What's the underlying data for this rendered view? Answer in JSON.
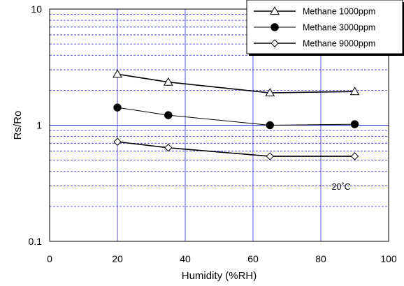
{
  "chart_data": {
    "type": "line",
    "xlabel": "Humidity (%RH)",
    "ylabel": "Rs/Ro",
    "xlim": [
      0,
      100
    ],
    "ylim": [
      0.1,
      10
    ],
    "yscale": "log",
    "xticks": [
      0,
      20,
      40,
      60,
      80,
      100
    ],
    "yticks": [
      0.1,
      1,
      10
    ],
    "xtick_labels": [
      "0",
      "20",
      "40",
      "60",
      "80",
      "100"
    ],
    "ytick_labels": [
      "0.1",
      "1",
      "10"
    ],
    "grid": true,
    "grid_color": "#2b2bd6",
    "legend_position": "top-right",
    "annotation": "20˚C",
    "series": [
      {
        "name": "Methane 1000ppm",
        "marker": "triangle-open",
        "line_width": 1.6,
        "x": [
          20,
          35,
          65,
          90
        ],
        "y": [
          2.75,
          2.35,
          1.9,
          1.95
        ]
      },
      {
        "name": "Methane 3000ppm",
        "marker": "circle-filled",
        "line_width": 1.0,
        "x": [
          20,
          35,
          65,
          90
        ],
        "y": [
          1.42,
          1.22,
          1.0,
          1.02
        ]
      },
      {
        "name": "Methane 9000ppm",
        "marker": "diamond-open",
        "line_width": 1.6,
        "x": [
          20,
          35,
          65,
          90
        ],
        "y": [
          0.72,
          0.64,
          0.54,
          0.54
        ]
      }
    ]
  }
}
